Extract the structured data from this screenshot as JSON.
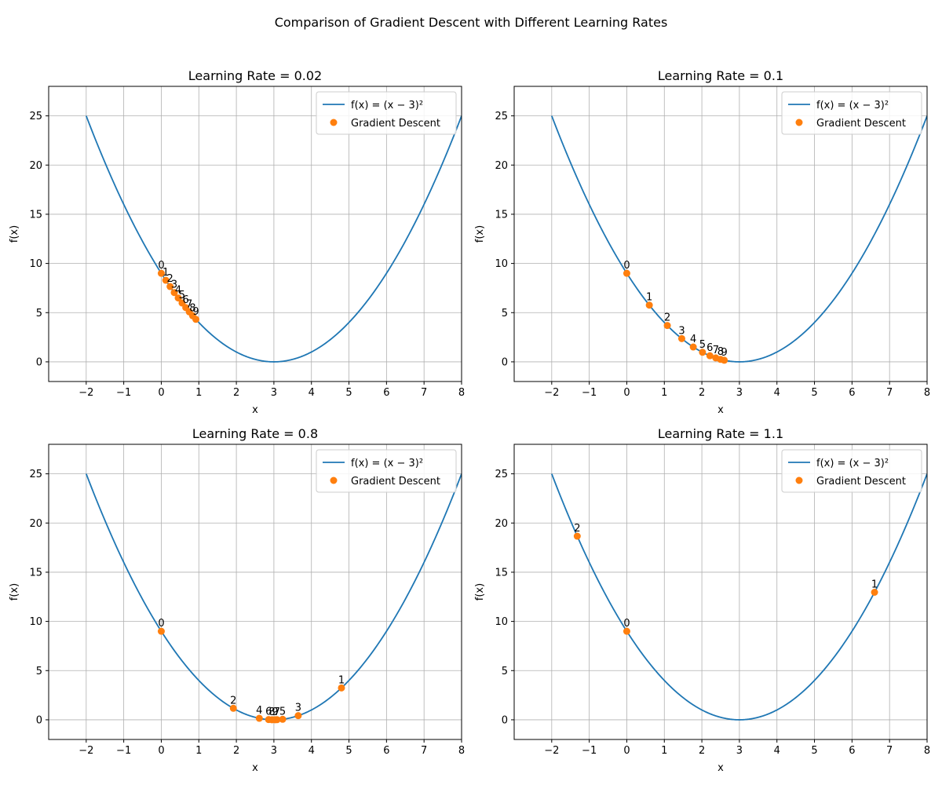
{
  "figure_title": "Comparison of Gradient Descent with Different Learning Rates",
  "legend": {
    "curve_label": "f(x) = (x − 3)²",
    "points_label": "Gradient Descent"
  },
  "colors": {
    "curve": "#1f77b4",
    "points": "#ff7f0e",
    "grid": "#b0b0b0",
    "axes": "#000000"
  },
  "chart_data": [
    {
      "type": "line",
      "title": "Learning Rate = 0.02",
      "xlabel": "x",
      "ylabel": "f(x)",
      "xlim": [
        -3,
        8
      ],
      "ylim": [
        -2,
        28
      ],
      "xticks": [
        -2,
        -1,
        0,
        1,
        2,
        3,
        4,
        5,
        6,
        7,
        8
      ],
      "yticks": [
        0,
        5,
        10,
        15,
        20,
        25
      ],
      "grid": true,
      "legend": "top-right",
      "curve_domain": [
        -2,
        8
      ],
      "points": [
        {
          "label": "0",
          "x": 0.0,
          "y": 9.0
        },
        {
          "label": "1",
          "x": 0.12,
          "y": 8.29
        },
        {
          "label": "2",
          "x": 0.235,
          "y": 7.65
        },
        {
          "label": "3",
          "x": 0.346,
          "y": 7.04
        },
        {
          "label": "4",
          "x": 0.452,
          "y": 6.49
        },
        {
          "label": "5",
          "x": 0.554,
          "y": 5.98
        },
        {
          "label": "6",
          "x": 0.652,
          "y": 5.51
        },
        {
          "label": "7",
          "x": 0.746,
          "y": 5.08
        },
        {
          "label": "8",
          "x": 0.836,
          "y": 4.68
        },
        {
          "label": "9",
          "x": 0.922,
          "y": 4.32
        }
      ]
    },
    {
      "type": "line",
      "title": "Learning Rate = 0.1",
      "xlabel": "x",
      "ylabel": "f(x)",
      "xlim": [
        -3,
        8
      ],
      "ylim": [
        -2,
        28
      ],
      "xticks": [
        -2,
        -1,
        0,
        1,
        2,
        3,
        4,
        5,
        6,
        7,
        8
      ],
      "yticks": [
        0,
        5,
        10,
        15,
        20,
        25
      ],
      "grid": true,
      "legend": "top-right",
      "curve_domain": [
        -2,
        8
      ],
      "points": [
        {
          "label": "0",
          "x": 0.0,
          "y": 9.0
        },
        {
          "label": "1",
          "x": 0.6,
          "y": 5.76
        },
        {
          "label": "2",
          "x": 1.08,
          "y": 3.69
        },
        {
          "label": "3",
          "x": 1.464,
          "y": 2.36
        },
        {
          "label": "4",
          "x": 1.771,
          "y": 1.51
        },
        {
          "label": "5",
          "x": 2.017,
          "y": 0.97
        },
        {
          "label": "6",
          "x": 2.214,
          "y": 0.62
        },
        {
          "label": "7",
          "x": 2.371,
          "y": 0.4
        },
        {
          "label": "8",
          "x": 2.497,
          "y": 0.25
        },
        {
          "label": "9",
          "x": 2.597,
          "y": 0.16
        }
      ]
    },
    {
      "type": "line",
      "title": "Learning Rate = 0.8",
      "xlabel": "x",
      "ylabel": "f(x)",
      "xlim": [
        -3,
        8
      ],
      "ylim": [
        -2,
        28
      ],
      "xticks": [
        -2,
        -1,
        0,
        1,
        2,
        3,
        4,
        5,
        6,
        7,
        8
      ],
      "yticks": [
        0,
        5,
        10,
        15,
        20,
        25
      ],
      "grid": true,
      "legend": "top-right",
      "curve_domain": [
        -2,
        8
      ],
      "points": [
        {
          "label": "0",
          "x": 0.0,
          "y": 9.0
        },
        {
          "label": "1",
          "x": 4.8,
          "y": 3.24
        },
        {
          "label": "2",
          "x": 1.92,
          "y": 1.17
        },
        {
          "label": "3",
          "x": 3.648,
          "y": 0.42
        },
        {
          "label": "4",
          "x": 2.611,
          "y": 0.15
        },
        {
          "label": "5",
          "x": 3.233,
          "y": 0.05
        },
        {
          "label": "6",
          "x": 2.86,
          "y": 0.02
        },
        {
          "label": "7",
          "x": 3.084,
          "y": 0.01
        },
        {
          "label": "8",
          "x": 2.95,
          "y": 0.0
        },
        {
          "label": "9",
          "x": 3.03,
          "y": 0.0
        }
      ]
    },
    {
      "type": "line",
      "title": "Learning Rate = 1.1",
      "xlabel": "x",
      "ylabel": "f(x)",
      "xlim": [
        -3,
        8
      ],
      "ylim": [
        -2,
        28
      ],
      "xticks": [
        -2,
        -1,
        0,
        1,
        2,
        3,
        4,
        5,
        6,
        7,
        8
      ],
      "yticks": [
        0,
        5,
        10,
        15,
        20,
        25
      ],
      "grid": true,
      "legend": "top-right",
      "curve_domain": [
        -2,
        8
      ],
      "points": [
        {
          "label": "0",
          "x": 0.0,
          "y": 9.0
        },
        {
          "label": "1",
          "x": 6.6,
          "y": 12.96
        },
        {
          "label": "2",
          "x": -1.32,
          "y": 18.66
        }
      ]
    }
  ]
}
